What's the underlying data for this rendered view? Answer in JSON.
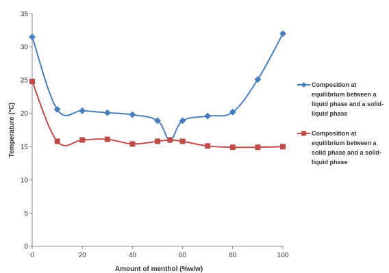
{
  "chart_data": {
    "type": "line",
    "xlabel": "Amount of menthol (%w/w)",
    "ylabel": "Temperature (°C)",
    "xlim": [
      0,
      100
    ],
    "ylim": [
      0,
      35
    ],
    "x_ticks": [
      "0",
      "20",
      "40",
      "60",
      "80",
      "100"
    ],
    "y_ticks": [
      "0",
      "5",
      "10",
      "15",
      "20",
      "25",
      "30",
      "35"
    ],
    "grid": false,
    "legend_position": "right",
    "series": [
      {
        "name": "Composition at equilibrium  between a liquid phase and a solid-liquid phase",
        "color": "#4a7ebb",
        "marker": "diamond",
        "x": [
          0,
          10,
          20,
          30,
          40,
          50,
          55,
          60,
          70,
          80,
          90,
          100
        ],
        "y": [
          31.5,
          20.6,
          20.4,
          20.1,
          19.8,
          18.9,
          16.0,
          18.9,
          19.6,
          20.2,
          25.1,
          32.0
        ]
      },
      {
        "name": "Composition at equilibrium between a solid phase and a solid-liquid phase",
        "color": "#be4b48",
        "marker": "square",
        "x": [
          0,
          10,
          20,
          30,
          40,
          50,
          55,
          60,
          70,
          80,
          90,
          100
        ],
        "y": [
          24.8,
          15.8,
          16.0,
          16.1,
          15.4,
          15.8,
          16.0,
          15.8,
          15.1,
          14.9,
          14.9,
          15.0
        ]
      }
    ]
  }
}
